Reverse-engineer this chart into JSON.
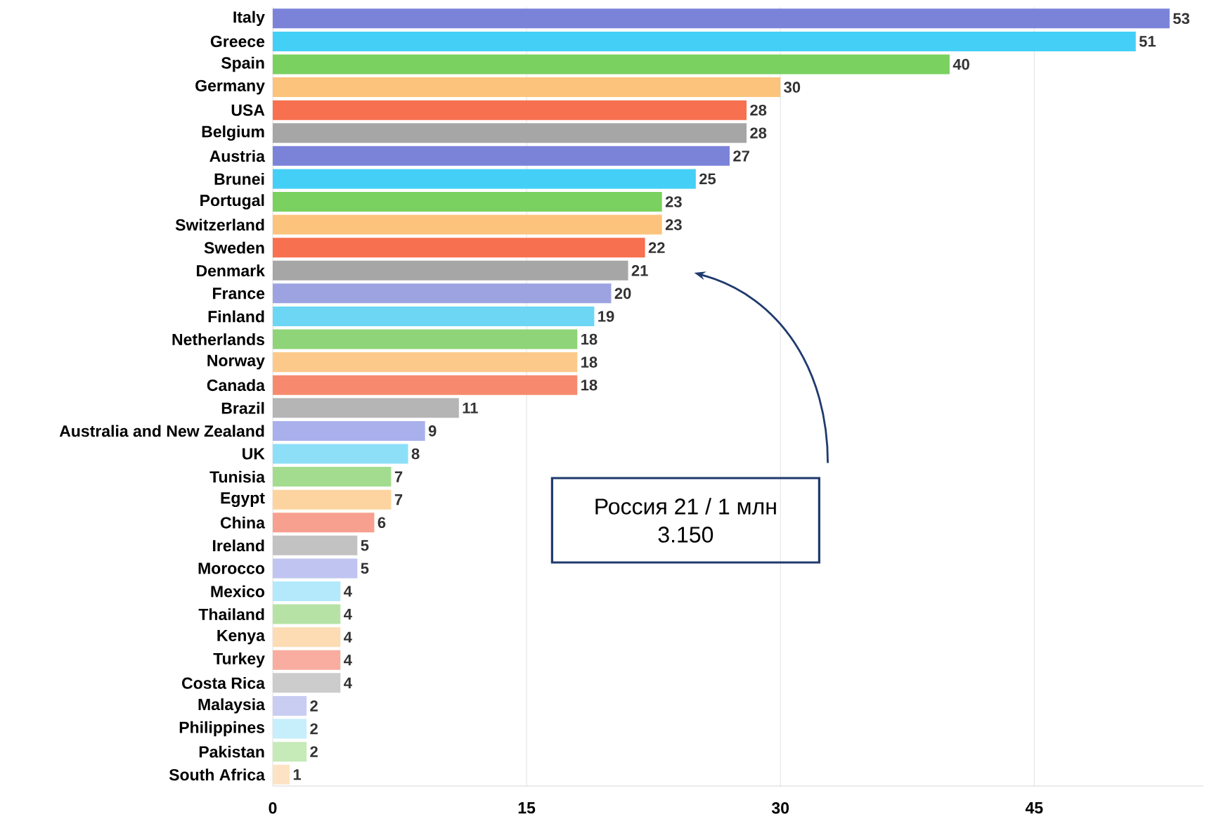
{
  "chart_data": {
    "type": "bar",
    "orientation": "horizontal",
    "categories": [
      "Italy",
      "Greece",
      "Spain",
      "Germany",
      "USA",
      "Belgium",
      "Austria",
      "Brunei",
      "Portugal",
      "Switzerland",
      "Sweden",
      "Denmark",
      "France",
      "Finland",
      "Netherlands",
      "Norway",
      "Canada",
      "Brazil",
      "Australia and New Zealand",
      "UK",
      "Tunisia",
      "Egypt",
      "China",
      "Ireland",
      "Morocco",
      "Mexico",
      "Thailand",
      "Kenya",
      "Turkey",
      "Costa Rica",
      "Malaysia",
      "Philippines",
      "Pakistan",
      "South Africa"
    ],
    "values": [
      53,
      51,
      40,
      30,
      28,
      28,
      27,
      25,
      23,
      23,
      22,
      21,
      20,
      19,
      18,
      18,
      18,
      11,
      9,
      8,
      7,
      7,
      6,
      5,
      5,
      4,
      4,
      4,
      4,
      4,
      2,
      2,
      2,
      1
    ],
    "colors": [
      "#7b83d9",
      "#44cff6",
      "#7ad160",
      "#fcc37c",
      "#f7704f",
      "#a6a6a6",
      "#7b83d9",
      "#44cff6",
      "#7ad160",
      "#fcc37c",
      "#f7704f",
      "#a6a6a6",
      "#9da3e0",
      "#6dd6f5",
      "#8fd478",
      "#fdc98a",
      "#f78a6e",
      "#b5b5b5",
      "#a9b0ec",
      "#8ddff8",
      "#a3dc8e",
      "#fdd4a0",
      "#f8a090",
      "#c2c2c2",
      "#c0c4f0",
      "#b3e9fa",
      "#b6e3a5",
      "#fddcb3",
      "#f8ada0",
      "#cccccc",
      "#c9cdf2",
      "#c6eefb",
      "#c6eab8",
      "#fde3c3"
    ],
    "xlim": [
      0,
      55
    ],
    "xticks": [
      0,
      15,
      30,
      45
    ],
    "grid": "x",
    "data_labels": true,
    "annotations": [
      "Россия 21 / 1 млн",
      "3.150"
    ]
  }
}
